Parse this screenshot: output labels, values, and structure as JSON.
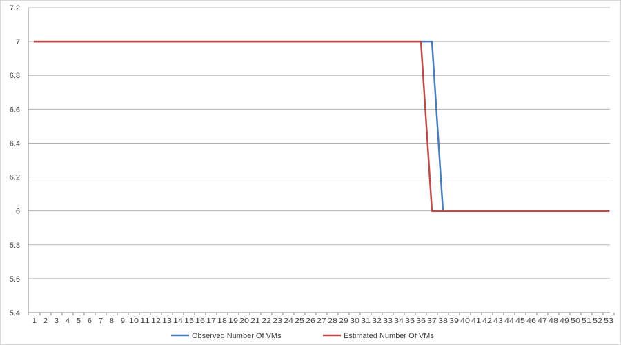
{
  "chart_data": {
    "type": "line",
    "title": "",
    "xlabel": "",
    "ylabel": "",
    "x": [
      1,
      2,
      3,
      4,
      5,
      6,
      7,
      8,
      9,
      10,
      11,
      12,
      13,
      14,
      15,
      16,
      17,
      18,
      19,
      20,
      21,
      22,
      23,
      24,
      25,
      26,
      27,
      28,
      29,
      30,
      31,
      32,
      33,
      34,
      35,
      36,
      37,
      38,
      39,
      40,
      41,
      42,
      43,
      44,
      45,
      46,
      47,
      48,
      49,
      50,
      51,
      52,
      53
    ],
    "ylim": [
      5.4,
      7.2
    ],
    "yticks": [
      "5.4",
      "5.6",
      "5.8",
      "6",
      "6.2",
      "6.4",
      "6.6",
      "6.8",
      "7",
      "7.2"
    ],
    "grid": true,
    "legend_position": "bottom",
    "series": [
      {
        "name": "Observed Number Of VMs",
        "color": "#4a7ebb",
        "values": [
          7,
          7,
          7,
          7,
          7,
          7,
          7,
          7,
          7,
          7,
          7,
          7,
          7,
          7,
          7,
          7,
          7,
          7,
          7,
          7,
          7,
          7,
          7,
          7,
          7,
          7,
          7,
          7,
          7,
          7,
          7,
          7,
          7,
          7,
          7,
          7,
          7,
          6,
          6,
          6,
          6,
          6,
          6,
          6,
          6,
          6,
          6,
          6,
          6,
          6,
          6,
          6,
          6
        ]
      },
      {
        "name": "Estimated Number Of VMs",
        "color": "#be4b48",
        "values": [
          7,
          7,
          7,
          7,
          7,
          7,
          7,
          7,
          7,
          7,
          7,
          7,
          7,
          7,
          7,
          7,
          7,
          7,
          7,
          7,
          7,
          7,
          7,
          7,
          7,
          7,
          7,
          7,
          7,
          7,
          7,
          7,
          7,
          7,
          7,
          7,
          6,
          6,
          6,
          6,
          6,
          6,
          6,
          6,
          6,
          6,
          6,
          6,
          6,
          6,
          6,
          6,
          6
        ]
      }
    ]
  }
}
